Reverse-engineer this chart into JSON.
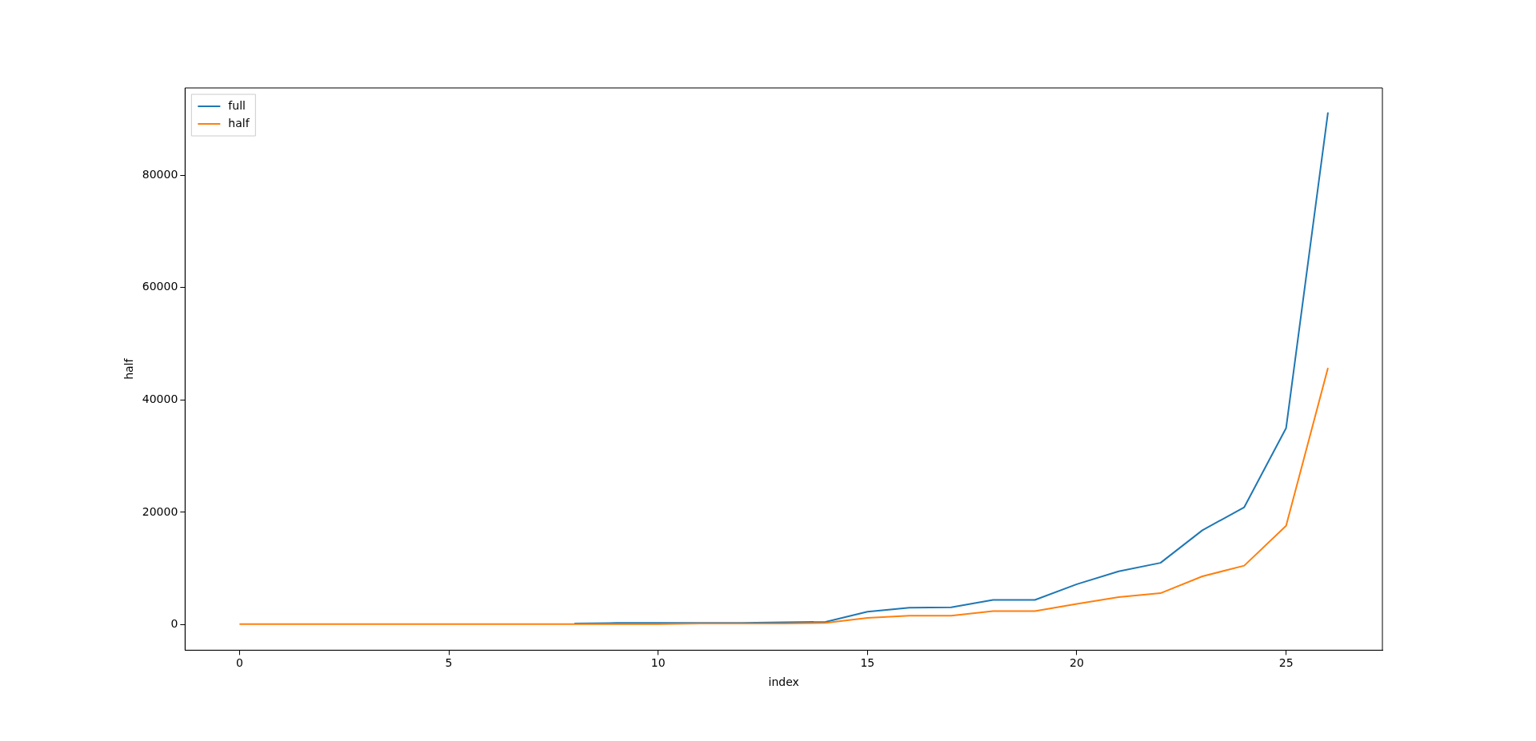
{
  "chart_data": {
    "type": "line",
    "xlabel": "index",
    "ylabel": "half",
    "x": [
      0,
      1,
      2,
      3,
      4,
      5,
      6,
      7,
      8,
      9,
      10,
      11,
      12,
      13,
      14,
      15,
      16,
      17,
      18,
      19,
      20,
      21,
      22,
      23,
      24,
      25,
      26
    ],
    "series": [
      {
        "name": "full",
        "color": "#1f77b4",
        "values": [
          null,
          null,
          null,
          null,
          null,
          null,
          null,
          null,
          200,
          300,
          300,
          300,
          300,
          400,
          500,
          2300,
          3000,
          3100,
          4400,
          4400,
          7200,
          9500,
          11000,
          16800,
          20900,
          35000,
          91200
        ]
      },
      {
        "name": "half",
        "color": "#ff7f0e",
        "values": [
          100,
          100,
          100,
          100,
          100,
          100,
          100,
          100,
          100,
          100,
          100,
          200,
          200,
          200,
          300,
          1200,
          1600,
          1600,
          2400,
          2400,
          3700,
          4900,
          5600,
          8600,
          10500,
          17600,
          45700
        ]
      }
    ],
    "xlim": [
      -1.3,
      27.3
    ],
    "xticks": [
      0,
      5,
      10,
      15,
      20,
      25
    ],
    "ylim": [
      -4550,
      95550
    ],
    "yticks": [
      0,
      20000,
      40000,
      60000,
      80000
    ],
    "grid": false,
    "legend": "top left",
    "marker": "none",
    "line_style": "solid"
  }
}
